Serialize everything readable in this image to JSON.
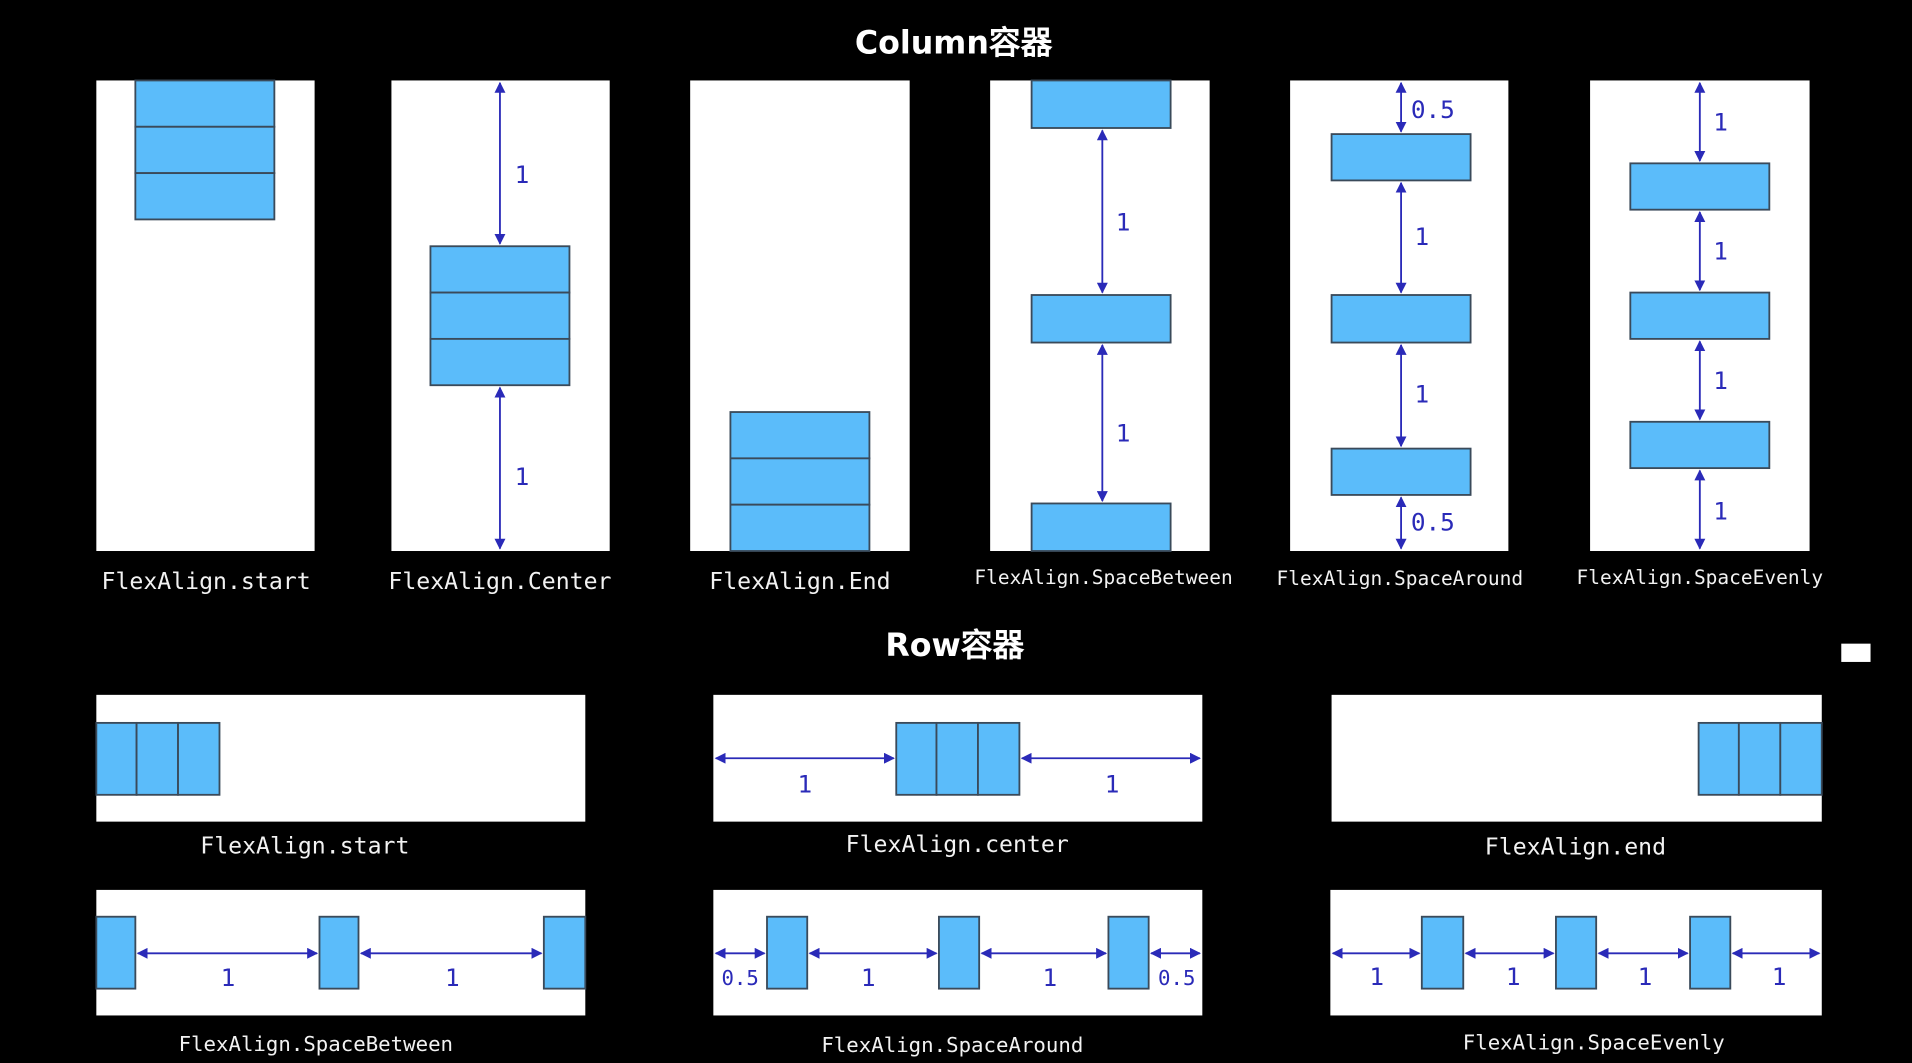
{
  "column_section": {
    "title": "Column容器",
    "panels": [
      {
        "label": "FlexAlign.start",
        "gaps": []
      },
      {
        "label": "FlexAlign.Center",
        "gaps": [
          "1",
          "1"
        ]
      },
      {
        "label": "FlexAlign.End",
        "gaps": []
      },
      {
        "label": "FlexAlign.SpaceBetween",
        "gaps": [
          "1",
          "1"
        ]
      },
      {
        "label": "FlexAlign.SpaceAround",
        "gaps": [
          "0.5",
          "1",
          "1",
          "0.5"
        ]
      },
      {
        "label": "FlexAlign.SpaceEvenly",
        "gaps": [
          "1",
          "1",
          "1",
          "1"
        ]
      }
    ]
  },
  "row_section": {
    "title": "Row容器",
    "panels": [
      {
        "label": "FlexAlign.start",
        "gaps": []
      },
      {
        "label": "FlexAlign.center",
        "gaps": [
          "1",
          "1"
        ]
      },
      {
        "label": "FlexAlign.end",
        "gaps": []
      },
      {
        "label": "FlexAlign.SpaceBetween",
        "gaps": [
          "1",
          "1"
        ]
      },
      {
        "label": "FlexAlign.SpaceAround",
        "gaps": [
          "0.5",
          "1",
          "1",
          "0.5"
        ]
      },
      {
        "label": "FlexAlign.SpaceEvenly",
        "gaps": [
          "1",
          "1",
          "1",
          "1"
        ]
      }
    ]
  },
  "colors": {
    "background": "#000000",
    "container": "#ffffff",
    "child_fill": "#5bbcfa",
    "child_stroke": "#3a4a5a",
    "arrow": "#2a2ab8"
  }
}
